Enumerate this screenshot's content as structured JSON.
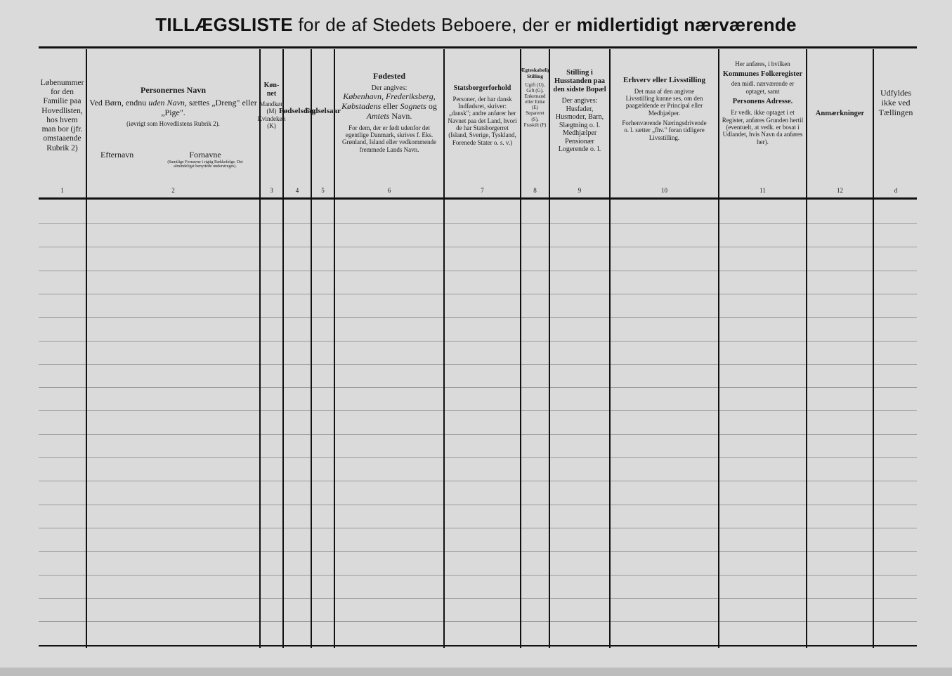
{
  "title": {
    "bold": "TILLÆGSLISTE",
    "rest": " for de af Stedets Beboere, der er ",
    "emph": "midlertidigt nærværende"
  },
  "columns": [
    {
      "num": "1",
      "text": "Løbenummer for den Familie paa Hovedlisten, hos hvem man bor (jfr. omstaaende Rubrik 2)"
    },
    {
      "num": "2",
      "heading": "Personernes Navn",
      "line1a": "Ved Børn, endnu ",
      "line1i": "uden Navn",
      "line1b": ", sættes „Dreng\" eller „Pige\".",
      "note": "(iøvrigt som Hovedlistens Rubrik 2).",
      "sub1": "Efternavn",
      "sub2": "Fornavne",
      "sub2note": "(Samtlige Fornavne i rigtig Rækkefølge. Det almindeligst benyttede understreges)."
    },
    {
      "num": "3",
      "heading": "Køn-net",
      "text": "Mandkøn (M) Kvindekøn (K)"
    },
    {
      "num": "4",
      "heading": "Fødselsdag"
    },
    {
      "num": "5",
      "heading": "Fødselsaar"
    },
    {
      "num": "6",
      "heading": "Fødested",
      "intro": "Der angives:",
      "italic1": "København, Frederiksberg, Købstadens",
      "plain1": " eller ",
      "italic2": "Sognets",
      "plain2": " og ",
      "italic3": "Amtets",
      "plain3": " Navn.",
      "text2": "For dem, der er født udenfor det egentlige Danmark, skrives f. Eks. Grønland, Island eller vedkommende fremmede Lands Navn."
    },
    {
      "num": "7",
      "heading": "Statsborgerforhold",
      "text": "Personer, der har dansk Indfødsret, skriver: „dansk\"; andre anfører her Navnet paa det Land, hvori de har Statsborgerret (Island, Sverige, Tyskland, Forenede Stater o. s. v.)"
    },
    {
      "num": "8",
      "heading": "Ægteskabelig Stilling",
      "text": "Ugift (U), Gift (G), Enkemand eller Enke (E) Separeret (S), Fraskilt (F)"
    },
    {
      "num": "9",
      "heading": "Stilling i Husstanden paa den sidste Bopæl",
      "text": "Der angives: Husfader, Husmoder, Barn, Slægtning o. l. Medhjælper Pensionær Logerende o. l."
    },
    {
      "num": "10",
      "heading": "Erhverv eller Livsstilling",
      "text": "Det maa af den angivne Livsstilling kunne ses, om den paagældende er Principal eller Medhjælper.",
      "text2": "Forhenværende Næringsdrivende o. l. sætter „fhv.\" foran tidligere Livsstilling."
    },
    {
      "num": "11",
      "intro": "Her anføres, i hvilken",
      "heading": "Kommunes Folkeregister",
      "mid": "den midl. nærværende er optaget, samt",
      "heading2": "Personens Adresse.",
      "text": "Er vedk. ikke optaget i et Register, anføres Grunden hertil (eventuelt, at vedk. er bosat i Udlandet, hvis Navn da anføres her)."
    },
    {
      "num": "12",
      "heading": "Anmærkninger"
    },
    {
      "num": "d",
      "text": "Udfyldes ikke ved Tællingen"
    }
  ]
}
